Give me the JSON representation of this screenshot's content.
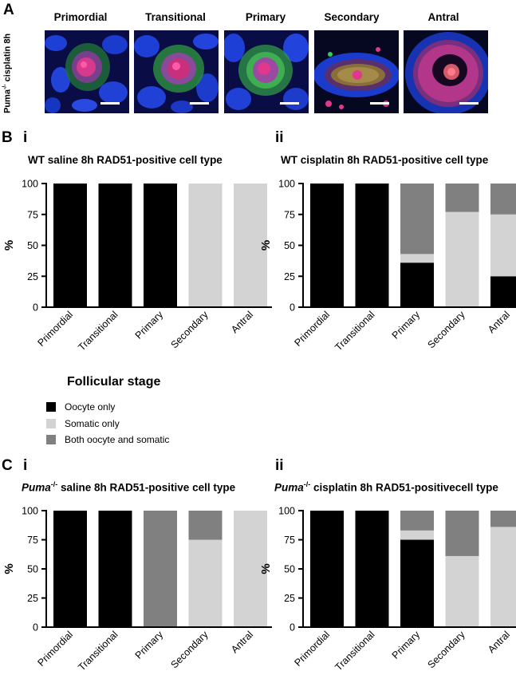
{
  "panel_a": {
    "letter": "A",
    "side_label_main": "Puma",
    "side_label_sup": "-/-",
    "side_label_rest": " cisplatin 8h",
    "images": [
      {
        "label": "Primordial",
        "icon": "primordial-follicle-micrograph"
      },
      {
        "label": "Transitional",
        "icon": "transitional-follicle-micrograph"
      },
      {
        "label": "Primary",
        "icon": "primary-follicle-micrograph"
      },
      {
        "label": "Secondary",
        "icon": "secondary-follicle-micrograph"
      },
      {
        "label": "Antral",
        "icon": "antral-follicle-micrograph"
      }
    ]
  },
  "panel_b": {
    "letter": "B",
    "sub_i": "i",
    "sub_ii": "ii",
    "title_i": "WT saline 8h RAD51-positive cell type",
    "title_ii": "WT cisplatin 8h RAD51-positive cell type"
  },
  "panel_c": {
    "letter": "C",
    "sub_i": "i",
    "sub_ii": "ii",
    "title_i_italic": "Puma",
    "title_i_sup": "-/-",
    "title_i_rest": " saline 8h RAD51-positive cell type",
    "title_ii_italic": "Puma",
    "title_ii_sup": "-/-",
    "title_ii_rest": " cisplatin 8h RAD51-positivecell type"
  },
  "legend": {
    "title": "Follicular stage",
    "items": [
      {
        "label": "Oocyte only",
        "color": "#000000"
      },
      {
        "label": "Somatic only",
        "color": "#d3d3d3"
      },
      {
        "label": "Both oocyte and somatic",
        "color": "#808080"
      }
    ]
  },
  "chart_data": [
    {
      "type": "bar",
      "stacked": true,
      "panel": "B i",
      "title": "WT saline 8h RAD51-positive cell type",
      "xlabel": "",
      "ylabel": "%",
      "ylim": [
        0,
        100
      ],
      "yticks": [
        0,
        25,
        50,
        75,
        100
      ],
      "categories": [
        "Primordial",
        "Transitional",
        "Primary",
        "Secondary",
        "Antral"
      ],
      "series": [
        {
          "name": "Oocyte only",
          "color": "#000000",
          "values": [
            100,
            100,
            100,
            0,
            0
          ]
        },
        {
          "name": "Somatic only",
          "color": "#d3d3d3",
          "values": [
            0,
            0,
            0,
            100,
            100
          ]
        },
        {
          "name": "Both oocyte and somatic",
          "color": "#808080",
          "values": [
            0,
            0,
            0,
            0,
            0
          ]
        }
      ]
    },
    {
      "type": "bar",
      "stacked": true,
      "panel": "B ii",
      "title": "WT cisplatin 8h RAD51-positive cell type",
      "xlabel": "",
      "ylabel": "%",
      "ylim": [
        0,
        100
      ],
      "yticks": [
        0,
        25,
        50,
        75,
        100
      ],
      "categories": [
        "Primordial",
        "Transitional",
        "Primary",
        "Secondary",
        "Antral"
      ],
      "series": [
        {
          "name": "Oocyte only",
          "color": "#000000",
          "values": [
            100,
            100,
            36,
            0,
            25
          ]
        },
        {
          "name": "Somatic only",
          "color": "#d3d3d3",
          "values": [
            0,
            0,
            7,
            77,
            50
          ]
        },
        {
          "name": "Both oocyte and somatic",
          "color": "#808080",
          "values": [
            0,
            0,
            57,
            23,
            25
          ]
        }
      ]
    },
    {
      "type": "bar",
      "stacked": true,
      "panel": "C i",
      "title": "Puma-/- saline 8h RAD51-positive cell type",
      "xlabel": "",
      "ylabel": "%",
      "ylim": [
        0,
        100
      ],
      "yticks": [
        0,
        25,
        50,
        75,
        100
      ],
      "categories": [
        "Primordial",
        "Transitional",
        "Primary",
        "Secondary",
        "Antral"
      ],
      "series": [
        {
          "name": "Oocyte only",
          "color": "#000000",
          "values": [
            100,
            100,
            0,
            0,
            0
          ]
        },
        {
          "name": "Somatic only",
          "color": "#d3d3d3",
          "values": [
            0,
            0,
            0,
            75,
            100
          ]
        },
        {
          "name": "Both oocyte and somatic",
          "color": "#808080",
          "values": [
            0,
            0,
            100,
            25,
            0
          ]
        }
      ]
    },
    {
      "type": "bar",
      "stacked": true,
      "panel": "C ii",
      "title": "Puma-/- cisplatin 8h RAD51-positivecell type",
      "xlabel": "",
      "ylabel": "%",
      "ylim": [
        0,
        100
      ],
      "yticks": [
        0,
        25,
        50,
        75,
        100
      ],
      "categories": [
        "Primordial",
        "Transitional",
        "Primary",
        "Secondary",
        "Antral"
      ],
      "series": [
        {
          "name": "Oocyte only",
          "color": "#000000",
          "values": [
            100,
            100,
            75,
            0,
            0
          ]
        },
        {
          "name": "Somatic only",
          "color": "#d3d3d3",
          "values": [
            0,
            0,
            8,
            61,
            86
          ]
        },
        {
          "name": "Both oocyte and somatic",
          "color": "#808080",
          "values": [
            0,
            0,
            17,
            39,
            14
          ]
        }
      ]
    }
  ]
}
